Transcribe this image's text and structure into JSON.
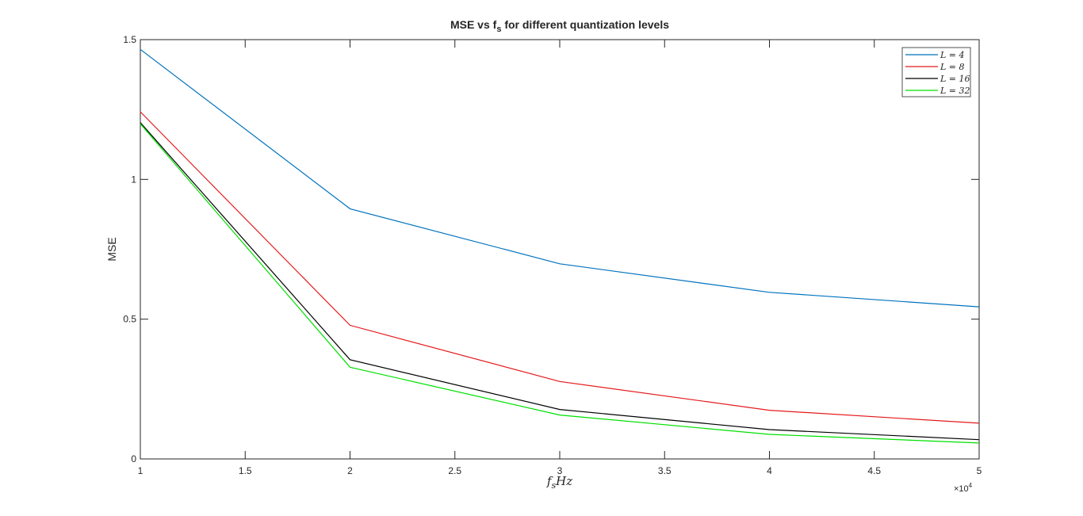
{
  "chart_data": {
    "type": "line",
    "title": {
      "main": "MSE vs f",
      "subscript": "s",
      "rest": " for different quantization levels"
    },
    "xlabel": {
      "var": "f",
      "subscript": "s",
      "unit": "Hz"
    },
    "ylabel": "MSE",
    "x_exponent": {
      "base": "×10",
      "power": "4"
    },
    "xlim": [
      1,
      5
    ],
    "ylim": [
      0,
      1.5
    ],
    "x_ticks": [
      1,
      1.5,
      2,
      2.5,
      3,
      3.5,
      4,
      4.5,
      5
    ],
    "x_tick_labels": [
      "1",
      "1.5",
      "2",
      "2.5",
      "3",
      "3.5",
      "4",
      "4.5",
      "5"
    ],
    "y_ticks": [
      0,
      0.5,
      1,
      1.5
    ],
    "y_tick_labels": [
      "0",
      "0.5",
      "1",
      "1.5"
    ],
    "x": [
      1,
      2,
      3,
      4,
      5
    ],
    "grid": false,
    "legend_position": "top-right",
    "series": [
      {
        "name": "L = 4",
        "color": "#0072BD",
        "values": [
          1.465,
          0.895,
          0.698,
          0.596,
          0.544
        ]
      },
      {
        "name": "L = 8",
        "color": "#E41A1C",
        "values": [
          1.242,
          0.478,
          0.277,
          0.174,
          0.128
        ]
      },
      {
        "name": "L = 16",
        "color": "#000000",
        "values": [
          1.203,
          0.355,
          0.177,
          0.105,
          0.069
        ]
      },
      {
        "name": "L = 32",
        "color": "#00E000",
        "values": [
          1.199,
          0.328,
          0.157,
          0.088,
          0.057
        ]
      }
    ]
  }
}
